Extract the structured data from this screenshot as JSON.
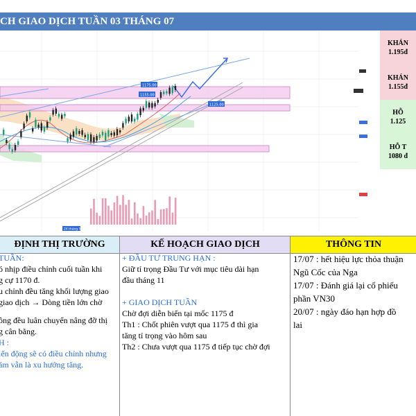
{
  "title": "CH  GIAO DỊCH TUẦN 03 THÁNG 07",
  "side_levels": [
    {
      "label": "KHÁN",
      "value": "1.195đ",
      "kind": "resistance"
    },
    {
      "label": "KHÁN",
      "value": "1.155đ",
      "kind": "resistance"
    },
    {
      "label": "HỖ",
      "value": "1.125",
      "kind": "support"
    },
    {
      "label": "HỖ T",
      "value": "1080 đ",
      "kind": "support"
    }
  ],
  "chart_labels": {
    "tag1": "1175.00",
    "tag2": "1155.00",
    "tag3": "1125.00",
    "date_tag": "24 tháng 5"
  },
  "headers": {
    "market": "ĐỊNH THỊ TRƯỜNG",
    "plan": "KẾ HOẠCH GIAO DỊCH",
    "info": "THÔNG TIN"
  },
  "market": {
    "heading1": "TUẦN:",
    "lines1": [
      "ó nhịp điều chỉnh cuối tuần khi",
      "g cự 1170 đ."
    ],
    "lines2": [
      "u chỉnh đều tăng khối lượng giao",
      "giao dịch → Dòng tiền lớn chờ"
    ],
    "lines3": [
      "ông đều luân chuyển nâng đỡ thị",
      "g cân bằng."
    ],
    "heading2": "H :",
    "lines4": [
      "iến động sẽ có điều chỉnh nhưng",
      "ăm vẫn là xu hướng tăng."
    ]
  },
  "plan": {
    "long_heading": "+ ĐẦU TƯ TRUNG HẠN :",
    "long_lines": [
      "Giữ tỉ trọng Đầu Tư với mục tiêu dài hạn",
      "đầu tháng 11"
    ],
    "week_heading": "+ GIAO DỊCH TUẦN",
    "week_lines": [
      "Chờ đợi diễn biến tại mốc 1175 đ",
      "Th1 : Chốt phiên vượt qua 1175 đ thì gia",
      "tăng tỉ trọng vào hôm sau",
      "Th2 : Chưa vượt qua 1175 đ tiếp tục chờ đợi"
    ]
  },
  "info": {
    "lines": [
      "17/07 : hết hiệu lực thỏa thuận",
      "Ngũ Cốc của Nga",
      "17/07 : Đánh giá lại cổ phiếu",
      "phần VN30",
      "20/07 : ngày đáo hạn hợp đồ",
      "lai"
    ]
  },
  "colors": {
    "title_bg": "#4f7fbf",
    "resistance_bg": "#f7d4da",
    "support_bg": "#d8f5d8",
    "header_market": "#daeef7",
    "header_plan": "#e2dcf4",
    "header_info": "#fff200",
    "blue_text": "#2b6cd8"
  }
}
